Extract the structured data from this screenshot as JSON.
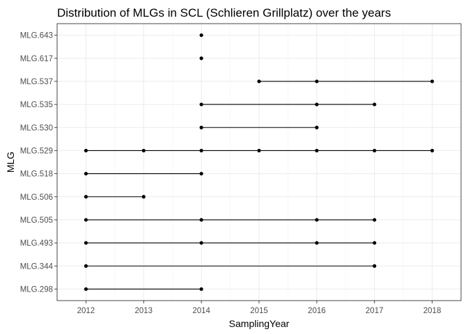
{
  "chart_data": {
    "type": "line",
    "title": "Distribution of MLGs in SCL (Schlieren Grillplatz) over the years",
    "xlabel": "SamplingYear",
    "ylabel": "MLG",
    "xlim": [
      2011.5,
      2018.5
    ],
    "x_ticks": [
      2012,
      2013,
      2014,
      2015,
      2016,
      2017,
      2018
    ],
    "categories": [
      "MLG.298",
      "MLG.344",
      "MLG.493",
      "MLG.505",
      "MLG.506",
      "MLG.518",
      "MLG.529",
      "MLG.530",
      "MLG.535",
      "MLG.537",
      "MLG.617",
      "MLG.643"
    ],
    "grid": true,
    "legend": "none",
    "series": [
      {
        "mlg": "MLG.298",
        "years": [
          2012,
          2014
        ]
      },
      {
        "mlg": "MLG.344",
        "years": [
          2012,
          2017
        ]
      },
      {
        "mlg": "MLG.493",
        "years": [
          2012,
          2014,
          2016,
          2017
        ]
      },
      {
        "mlg": "MLG.505",
        "years": [
          2012,
          2014,
          2016,
          2017
        ]
      },
      {
        "mlg": "MLG.506",
        "years": [
          2012,
          2013
        ]
      },
      {
        "mlg": "MLG.518",
        "years": [
          2012,
          2014
        ]
      },
      {
        "mlg": "MLG.529",
        "years": [
          2012,
          2013,
          2014,
          2015,
          2016,
          2017,
          2018
        ]
      },
      {
        "mlg": "MLG.530",
        "years": [
          2014,
          2016
        ]
      },
      {
        "mlg": "MLG.535",
        "years": [
          2014,
          2016,
          2017
        ]
      },
      {
        "mlg": "MLG.537",
        "years": [
          2015,
          2016,
          2018
        ]
      },
      {
        "mlg": "MLG.617",
        "years": [
          2014
        ]
      },
      {
        "mlg": "MLG.643",
        "years": [
          2014
        ]
      }
    ]
  }
}
